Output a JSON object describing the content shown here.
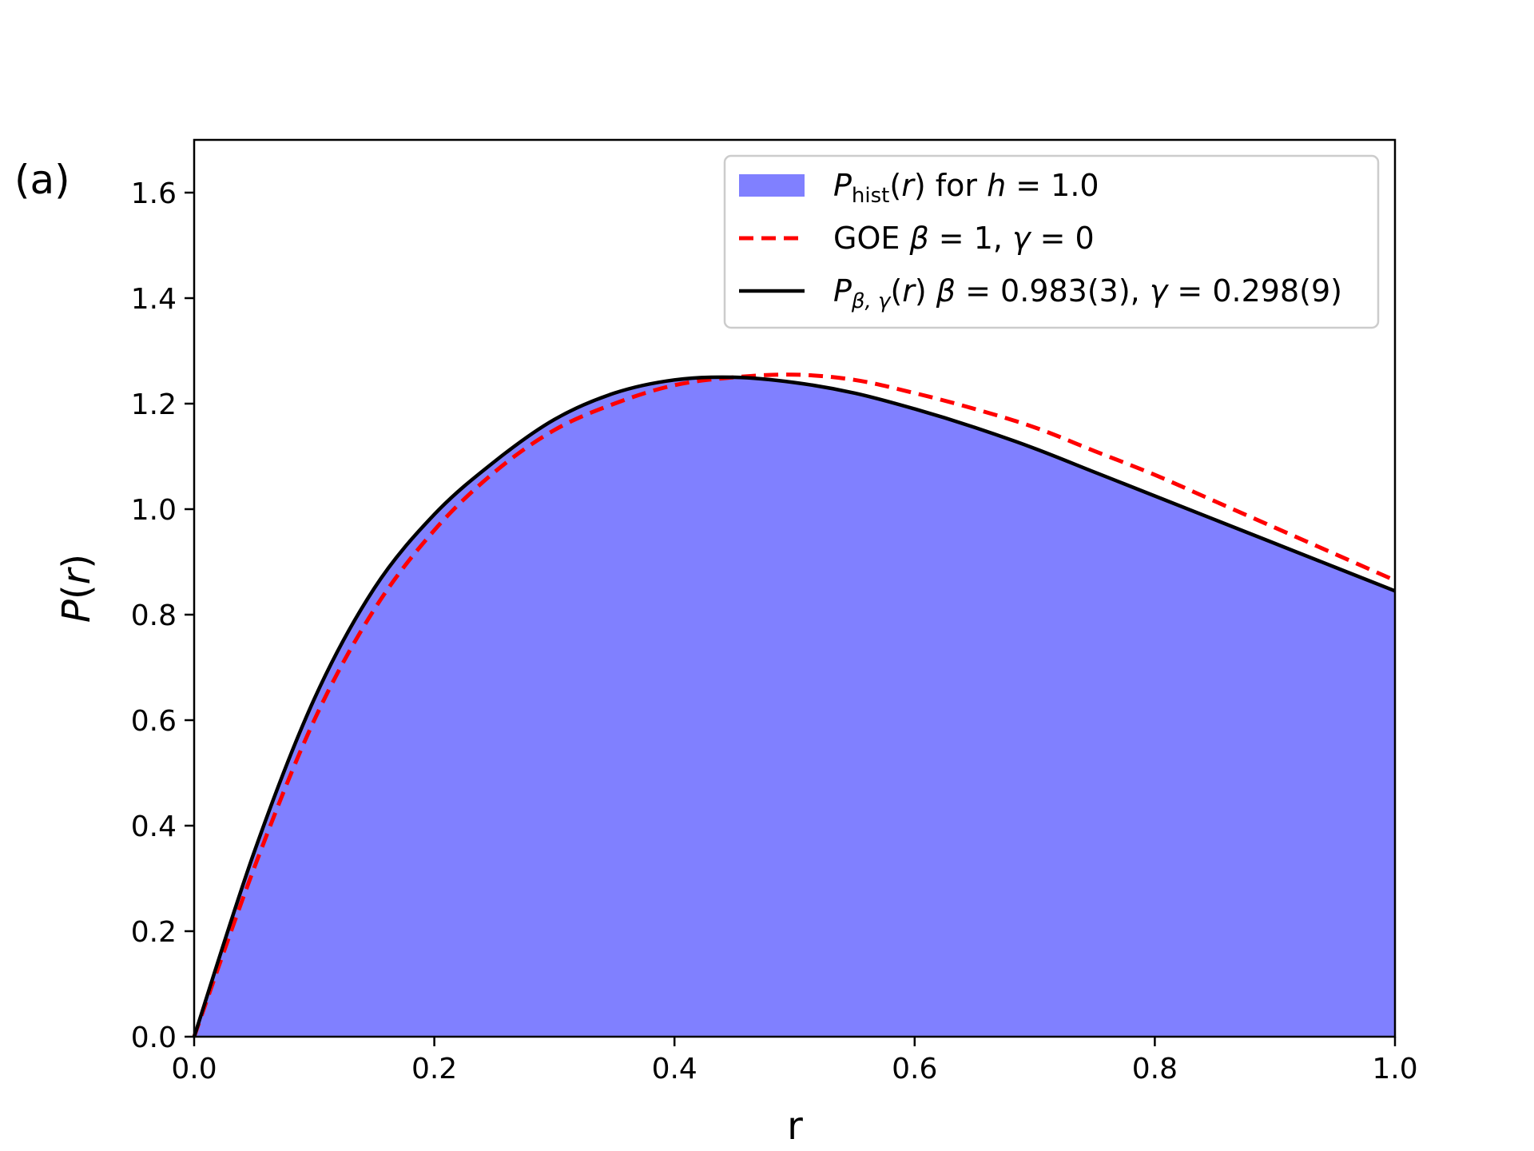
{
  "panel_label": "(a)",
  "chart_data": {
    "type": "area",
    "xlabel": "r",
    "ylabel": "P(r)",
    "xlim": [
      0.0,
      1.0
    ],
    "ylim": [
      0.0,
      1.7
    ],
    "xticks": [
      "0.0",
      "0.2",
      "0.4",
      "0.6",
      "0.8",
      "1.0"
    ],
    "yticks": [
      "0.0",
      "0.2",
      "0.4",
      "0.6",
      "0.8",
      "1.0",
      "1.2",
      "1.4",
      "1.6"
    ],
    "grid": false,
    "legend_position": "top-right",
    "x": [
      0.0,
      0.05,
      0.1,
      0.15,
      0.2,
      0.25,
      0.3,
      0.35,
      0.4,
      0.45,
      0.5,
      0.55,
      0.6,
      0.65,
      0.7,
      0.75,
      0.8,
      0.85,
      0.9,
      0.95,
      1.0
    ],
    "series": [
      {
        "name": "P_hist(r) for h = 1.0",
        "style": "filled-histogram",
        "color": "#8080ff",
        "values": [
          0.0,
          0.35,
          0.64,
          0.85,
          0.99,
          1.09,
          1.17,
          1.22,
          1.245,
          1.25,
          1.24,
          1.22,
          1.19,
          1.155,
          1.115,
          1.07,
          1.025,
          0.98,
          0.935,
          0.89,
          0.845
        ]
      },
      {
        "name": "GOE β = 1, γ = 0",
        "style": "dashed",
        "color": "#ff0000",
        "values": [
          0.0,
          0.32,
          0.6,
          0.81,
          0.96,
          1.07,
          1.15,
          1.2,
          1.235,
          1.25,
          1.255,
          1.245,
          1.22,
          1.19,
          1.155,
          1.11,
          1.065,
          1.015,
          0.965,
          0.915,
          0.865
        ]
      },
      {
        "name": "P_β,γ(r) β = 0.983(3), γ = 0.298(9)",
        "style": "solid",
        "color": "#000000",
        "values": [
          0.0,
          0.35,
          0.64,
          0.85,
          0.99,
          1.09,
          1.17,
          1.22,
          1.245,
          1.25,
          1.24,
          1.22,
          1.19,
          1.155,
          1.115,
          1.07,
          1.025,
          0.98,
          0.935,
          0.89,
          0.845
        ]
      }
    ]
  }
}
